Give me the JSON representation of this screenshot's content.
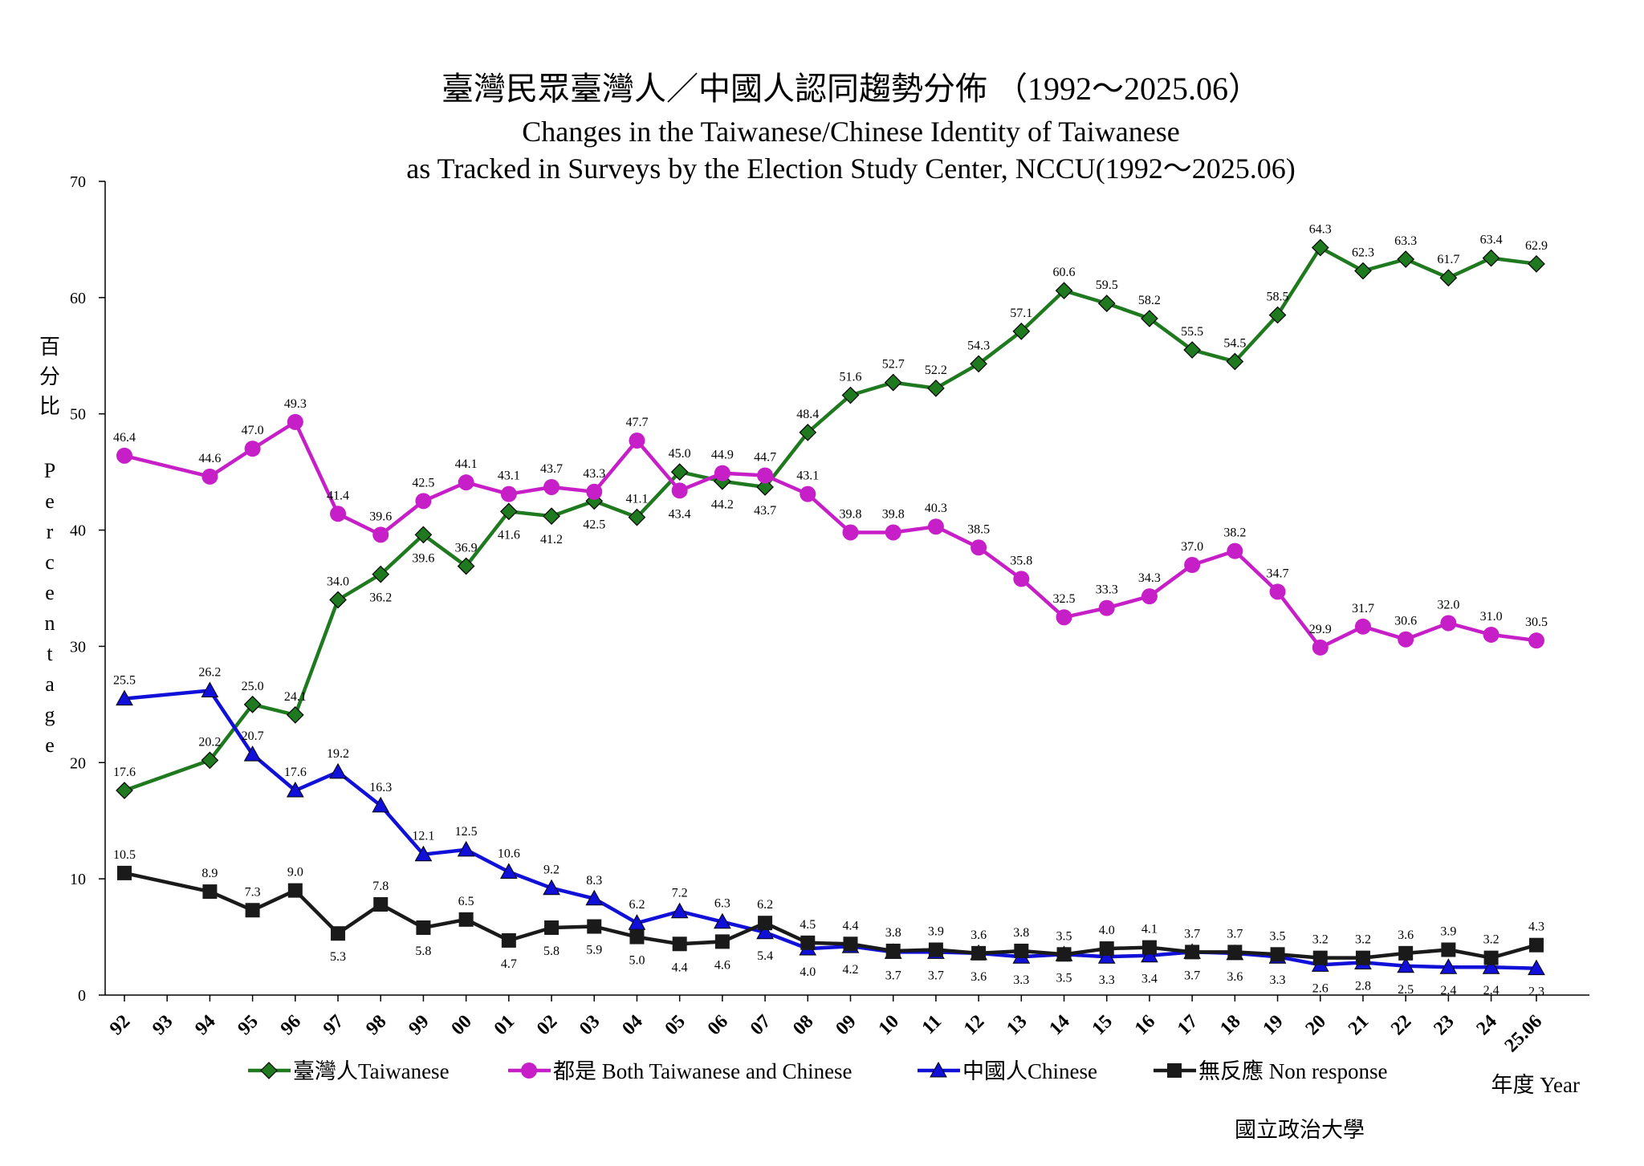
{
  "chart_data": {
    "type": "line",
    "title": "臺灣民眾臺灣人／中國人認同趨勢分佈 （1992～2025.06）",
    "subtitle_lines": [
      "Changes in the Taiwanese/Chinese Identity of Taiwanese",
      "as Tracked in Surveys by the Election Study Center, NCCU(1992～2025.06)"
    ],
    "ylabel_zh": [
      "百",
      "分",
      "比"
    ],
    "ylabel_en": [
      "P",
      "e",
      "r",
      "c",
      "e",
      "n",
      "t",
      "a",
      "g",
      "e"
    ],
    "xlabel": "年度 Year",
    "ylim": [
      0,
      70
    ],
    "yticks": [
      "0",
      "10",
      "20",
      "30",
      "40",
      "50",
      "60",
      "70"
    ],
    "x_categories": [
      "92",
      "93",
      "94",
      "95",
      "96",
      "97",
      "98",
      "99",
      "00",
      "01",
      "02",
      "03",
      "04",
      "05",
      "06",
      "07",
      "08",
      "09",
      "10",
      "11",
      "12",
      "13",
      "14",
      "15",
      "16",
      "17",
      "18",
      "19",
      "20",
      "21",
      "22",
      "23",
      "24",
      "25.06"
    ],
    "x": [
      1992,
      1994,
      1995,
      1996,
      1997,
      1998,
      1999,
      2000,
      2001,
      2002,
      2003,
      2004,
      2005,
      2006,
      2007,
      2008,
      2009,
      2010,
      2011,
      2012,
      2013,
      2014,
      2015,
      2016,
      2017,
      2018,
      2019,
      2020,
      2021,
      2022,
      2023,
      2024,
      2025.06
    ],
    "series": [
      {
        "name": "臺灣人Taiwanese",
        "color": "#1f7a1f",
        "marker": "diamond",
        "values": [
          17.6,
          20.2,
          25.0,
          24.1,
          34.0,
          36.2,
          39.6,
          36.9,
          41.6,
          41.2,
          42.5,
          41.1,
          45.0,
          44.2,
          43.7,
          48.4,
          51.6,
          52.7,
          52.2,
          54.3,
          57.1,
          60.6,
          59.5,
          58.2,
          55.5,
          54.5,
          58.5,
          64.3,
          62.3,
          63.3,
          61.7,
          63.4,
          62.9
        ],
        "labels": [
          "17.6",
          "20.2",
          "25.0",
          "24.1",
          "34.0",
          "36.2",
          "39.6",
          "36.9",
          "41.6",
          "41.2",
          "42.5",
          "41.1",
          "45.0",
          "44.2",
          "43.7",
          "48.4",
          "51.6",
          "52.7",
          "52.2",
          "54.3",
          "57.1",
          "60.6",
          "59.5",
          "58.2",
          "55.5",
          "54.5",
          "58.5",
          "64.3",
          "62.3",
          "63.3",
          "61.7",
          "63.4",
          "62.9"
        ]
      },
      {
        "name": "都是 Both Taiwanese and Chinese",
        "color": "#c71fc7",
        "marker": "circle",
        "values": [
          46.4,
          44.6,
          47.0,
          49.3,
          41.4,
          39.6,
          42.5,
          44.1,
          43.1,
          43.7,
          43.3,
          47.7,
          43.4,
          44.9,
          44.7,
          43.1,
          39.8,
          39.8,
          40.3,
          38.5,
          35.8,
          32.5,
          33.3,
          34.3,
          37.0,
          38.2,
          34.7,
          29.9,
          31.7,
          30.6,
          32.0,
          31.0,
          30.5
        ],
        "labels": [
          "46.4",
          "44.6",
          "47.0",
          "49.3",
          "41.4",
          "39.6",
          "42.5",
          "44.1",
          "43.1",
          "43.7",
          "43.3",
          "47.7",
          "43.4",
          "44.9",
          "44.7",
          "43.1",
          "39.8",
          "39.8",
          "40.3",
          "38.5",
          "35.8",
          "32.5",
          "33.3",
          "34.3",
          "37.0",
          "38.2",
          "34.7",
          "29.9",
          "31.7",
          "30.6",
          "32.0",
          "31.0",
          "30.5"
        ]
      },
      {
        "name": "中國人Chinese",
        "color": "#1010d8",
        "marker": "triangle",
        "values": [
          25.5,
          26.2,
          20.7,
          17.6,
          19.2,
          16.3,
          12.1,
          12.5,
          10.6,
          9.2,
          8.3,
          6.2,
          7.2,
          6.3,
          5.4,
          4.0,
          4.2,
          3.7,
          3.7,
          3.6,
          3.3,
          3.5,
          3.3,
          3.4,
          3.7,
          3.6,
          3.3,
          2.6,
          2.8,
          2.5,
          2.4,
          2.4,
          2.3
        ],
        "labels": [
          "25.5",
          "26.2",
          "20.7",
          "17.6",
          "19.2",
          "16.3",
          "12.1",
          "12.5",
          "10.6",
          "9.2",
          "8.3",
          "6.2",
          "7.2",
          "6.3",
          "5.4",
          "4.0",
          "4.2",
          "3.7",
          "3.7",
          "3.6",
          "3.3",
          "3.5",
          "3.3",
          "3.4",
          "3.7",
          "3.6",
          "3.3",
          "2.6",
          "2.8",
          "2.5",
          "2.4",
          "2.4",
          "2.3"
        ]
      },
      {
        "name": "無反應 Non response",
        "color": "#1a1a1a",
        "marker": "square",
        "values": [
          10.5,
          8.9,
          7.3,
          9.0,
          5.3,
          7.8,
          5.8,
          6.5,
          4.7,
          5.8,
          5.9,
          5.0,
          4.4,
          4.6,
          6.2,
          4.5,
          4.4,
          3.8,
          3.9,
          3.6,
          3.8,
          3.5,
          4.0,
          4.1,
          3.7,
          3.7,
          3.5,
          3.2,
          3.2,
          3.6,
          3.9,
          3.2,
          4.3
        ],
        "labels": [
          "10.5",
          "8.9",
          "7.3",
          "9.0",
          "5.3",
          "7.8",
          "5.8",
          "6.5",
          "4.7",
          "5.8",
          "5.9",
          "5.0",
          "4.4",
          "4.6",
          "6.2",
          "4.5",
          "4.4",
          "3.8",
          "3.9",
          "3.6",
          "3.8",
          "3.5",
          "4.0",
          "4.1",
          "3.7",
          "3.7",
          "3.5",
          "3.2",
          "3.2",
          "3.6",
          "3.9",
          "3.2",
          "4.3"
        ]
      }
    ],
    "grid": false,
    "legend_position": "bottom",
    "source": "國立政治大學"
  }
}
